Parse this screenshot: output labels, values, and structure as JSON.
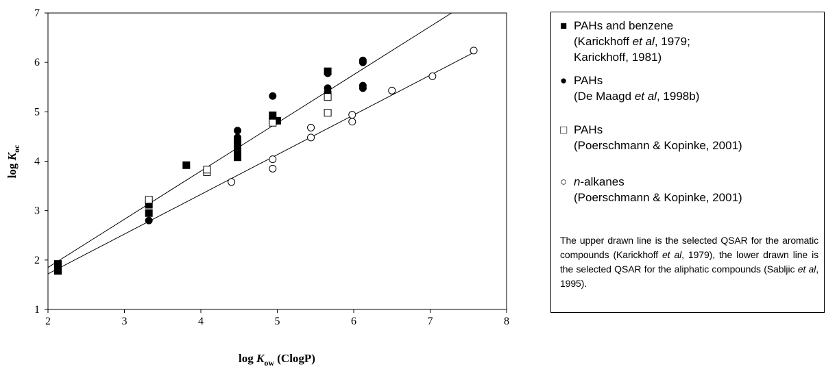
{
  "chart_data": {
    "type": "scatter",
    "xlim": [
      2,
      8
    ],
    "ylim": [
      1,
      7
    ],
    "xticks": [
      2,
      3,
      4,
      5,
      6,
      7,
      8
    ],
    "yticks": [
      1,
      2,
      3,
      4,
      5,
      6,
      7
    ],
    "xlabel": {
      "main": "log ",
      "var": "K",
      "sub": "ow",
      "suffix": " (ClogP)"
    },
    "ylabel": {
      "main": "log ",
      "var": "K",
      "sub": "oc"
    },
    "grid": false,
    "legend_position": "right",
    "series": [
      {
        "key": "pahs_benzene",
        "marker": "filled-square",
        "color": "#000000",
        "legend": {
          "symbol": "■",
          "line1": "PAHs and benzene",
          "line2_pre": "(Karickhoff ",
          "line2_em": "et al",
          "line2_post": ", 1979;",
          "line3": "Karickhoff, 1981)"
        },
        "points": [
          [
            2.13,
            1.78
          ],
          [
            2.13,
            1.92
          ],
          [
            3.32,
            2.95
          ],
          [
            3.32,
            3.12
          ],
          [
            3.81,
            3.92
          ],
          [
            4.48,
            4.08
          ],
          [
            4.48,
            4.2
          ],
          [
            4.48,
            4.3
          ],
          [
            4.48,
            4.38
          ],
          [
            4.94,
            4.82
          ],
          [
            4.94,
            4.93
          ],
          [
            5.0,
            4.82
          ],
          [
            5.66,
            5.82
          ]
        ]
      },
      {
        "key": "pahs_de_maagd",
        "marker": "filled-circle",
        "color": "#000000",
        "legend": {
          "symbol": "●",
          "line1": "PAHs",
          "line2_pre": "(De Maagd ",
          "line2_em": "et al",
          "line2_post": ", 1998b)"
        },
        "points": [
          [
            3.32,
            2.8
          ],
          [
            4.48,
            4.15
          ],
          [
            4.48,
            4.28
          ],
          [
            4.48,
            4.4
          ],
          [
            4.48,
            4.48
          ],
          [
            4.48,
            4.62
          ],
          [
            4.94,
            5.32
          ],
          [
            5.66,
            5.4
          ],
          [
            5.66,
            5.48
          ],
          [
            5.66,
            5.78
          ],
          [
            6.12,
            5.48
          ],
          [
            6.12,
            5.53
          ],
          [
            6.12,
            6.0
          ],
          [
            6.12,
            6.04
          ]
        ]
      },
      {
        "key": "pahs_poerschmann",
        "marker": "open-square",
        "color": "#000000",
        "legend": {
          "symbol": "□",
          "line1": "PAHs",
          "line2": "(Poerschmann & Kopinke, 2001)"
        },
        "points": [
          [
            3.32,
            3.22
          ],
          [
            4.08,
            3.78
          ],
          [
            4.08,
            3.83
          ],
          [
            4.94,
            4.78
          ],
          [
            5.66,
            4.98
          ],
          [
            5.66,
            5.3
          ]
        ]
      },
      {
        "key": "n_alkanes",
        "marker": "open-circle",
        "color": "#000000",
        "legend": {
          "symbol": "○",
          "line1_em": "n",
          "line1": "-alkanes",
          "line2": "(Poerschmann & Kopinke, 2001)"
        },
        "points": [
          [
            4.4,
            3.58
          ],
          [
            4.94,
            3.85
          ],
          [
            4.94,
            4.04
          ],
          [
            5.44,
            4.48
          ],
          [
            5.44,
            4.68
          ],
          [
            5.98,
            4.8
          ],
          [
            5.98,
            4.94
          ],
          [
            6.5,
            5.43
          ],
          [
            7.03,
            5.72
          ],
          [
            7.57,
            6.24
          ]
        ]
      }
    ],
    "lines": [
      {
        "name": "aromatic",
        "from": [
          2.0,
          1.85
        ],
        "to": [
          7.28,
          7.0
        ]
      },
      {
        "name": "aliphatic",
        "from": [
          2.0,
          1.72
        ],
        "to": [
          7.57,
          6.2
        ]
      }
    ]
  },
  "legend_note": {
    "t1": "The upper drawn line is the selected QSAR for the aromatic compounds (Karickhoff ",
    "em1": "et al",
    "t2": ", 1979), the lower drawn line is the selected QSAR for the aliphatic compounds (Sabljic ",
    "em2": "et al",
    "t3": ", 1995)."
  }
}
